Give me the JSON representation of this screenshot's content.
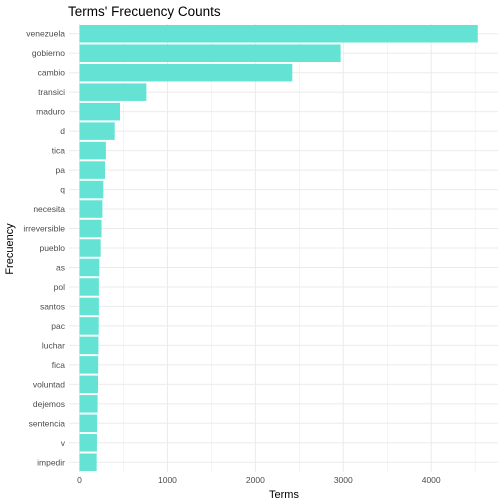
{
  "chart_data": {
    "type": "bar",
    "orientation": "horizontal",
    "title": "Terms' Frecuency Counts",
    "xlabel": "Terms",
    "ylabel": "Frecuency",
    "categories": [
      "venezuela",
      "gobierno",
      "cambio",
      "transici",
      "maduro",
      "d",
      "tica",
      "pa",
      "q",
      "necesita",
      "irreversible",
      "pueblo",
      "as",
      "pol",
      "santos",
      "pac",
      "luchar",
      "fica",
      "voluntad",
      "dejemos",
      "sentencia",
      "v",
      "impedir"
    ],
    "values": [
      4530,
      2970,
      2420,
      760,
      460,
      400,
      300,
      290,
      270,
      260,
      250,
      240,
      225,
      220,
      220,
      218,
      215,
      212,
      210,
      205,
      200,
      198,
      195
    ],
    "xlim": [
      -120,
      4760
    ],
    "x_ticks": [
      0,
      1000,
      2000,
      3000,
      4000
    ],
    "x_tick_labels": [
      "0",
      "1000",
      "2000",
      "3000",
      "4000"
    ],
    "grid": true,
    "bar_color": "#64e3d5",
    "background": "#ffffff",
    "grid_color": "#ebebeb"
  }
}
